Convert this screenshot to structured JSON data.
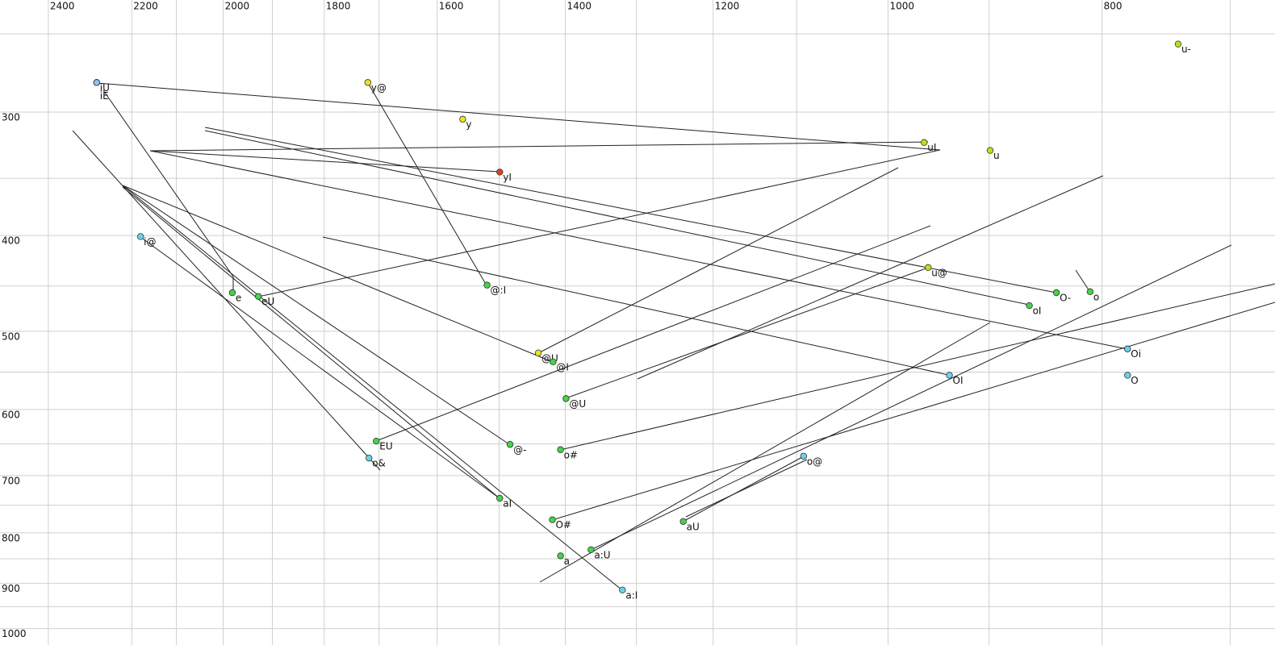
{
  "chart_data": {
    "type": "scatter",
    "xscale": "log",
    "yscale": "log",
    "xlim": [
      2524,
      668
    ],
    "ylim": [
      231,
      1039
    ],
    "xticks": [
      2400,
      2200,
      2000,
      1800,
      1600,
      1400,
      1200,
      1000,
      800
    ],
    "yticks": [
      300,
      400,
      500,
      600,
      700,
      800,
      900,
      1000
    ],
    "xminorgrid": [
      2100,
      1900,
      1700,
      1500,
      1300,
      1100,
      900,
      700
    ],
    "yminorgrid": [
      250,
      350,
      450,
      550,
      650,
      750,
      850,
      950
    ],
    "grid": true,
    "point_labels": [
      "u-",
      "iU",
      "iE",
      "y@",
      "y",
      "uI",
      "u",
      "yI",
      "i@",
      "u@",
      "@:I",
      "e",
      "eU",
      "O-",
      "o",
      "oI",
      "@U",
      "@I",
      "Oi",
      "OI",
      "O",
      "@U",
      "EU",
      "@-",
      "o#",
      "o@",
      "o&",
      "aI",
      "O#",
      "aU",
      "a:U",
      "a",
      "a:I"
    ],
    "x": [
      739,
      2282,
      2282,
      1720,
      1558,
      963,
      899,
      1499,
      2180,
      959,
      1519,
      1981,
      1928,
      839,
      810,
      863,
      1440,
      1418,
      779,
      938,
      779,
      1399,
      1705,
      1483,
      1407,
      1092,
      1718,
      1499,
      1419,
      1238,
      1363,
      1407,
      1319
    ],
    "values": [
      256,
      280,
      280,
      280,
      305,
      322,
      328,
      345,
      401,
      431,
      449,
      457,
      461,
      457,
      456,
      471,
      526,
      537,
      521,
      554,
      554,
      585,
      646,
      651,
      659,
      669,
      672,
      738,
      776,
      779,
      832,
      844,
      914
    ],
    "colors": [
      "#b4e41c",
      "#8cc0f0",
      "#8cc0f0",
      "#e6e620",
      "#e6e620",
      "#b4e41c",
      "#b4e41c",
      "#e0401a",
      "#6ad2e8",
      "#b4e41c",
      "#44d44a",
      "#44d44a",
      "#44d44a",
      "#44d44a",
      "#44d44a",
      "#44d44a",
      "#e6e620",
      "#44d44a",
      "#6ad2e8",
      "#6ad2e8",
      "#6ad2e8",
      "#44d44a",
      "#44d44a",
      "#44d44a",
      "#44d44a",
      "#6ad2e8",
      "#6ad2e8",
      "#44d44a",
      "#44d44a",
      "#44d44a",
      "#44d44a",
      "#44d44a",
      "#6ad2e8"
    ]
  }
}
